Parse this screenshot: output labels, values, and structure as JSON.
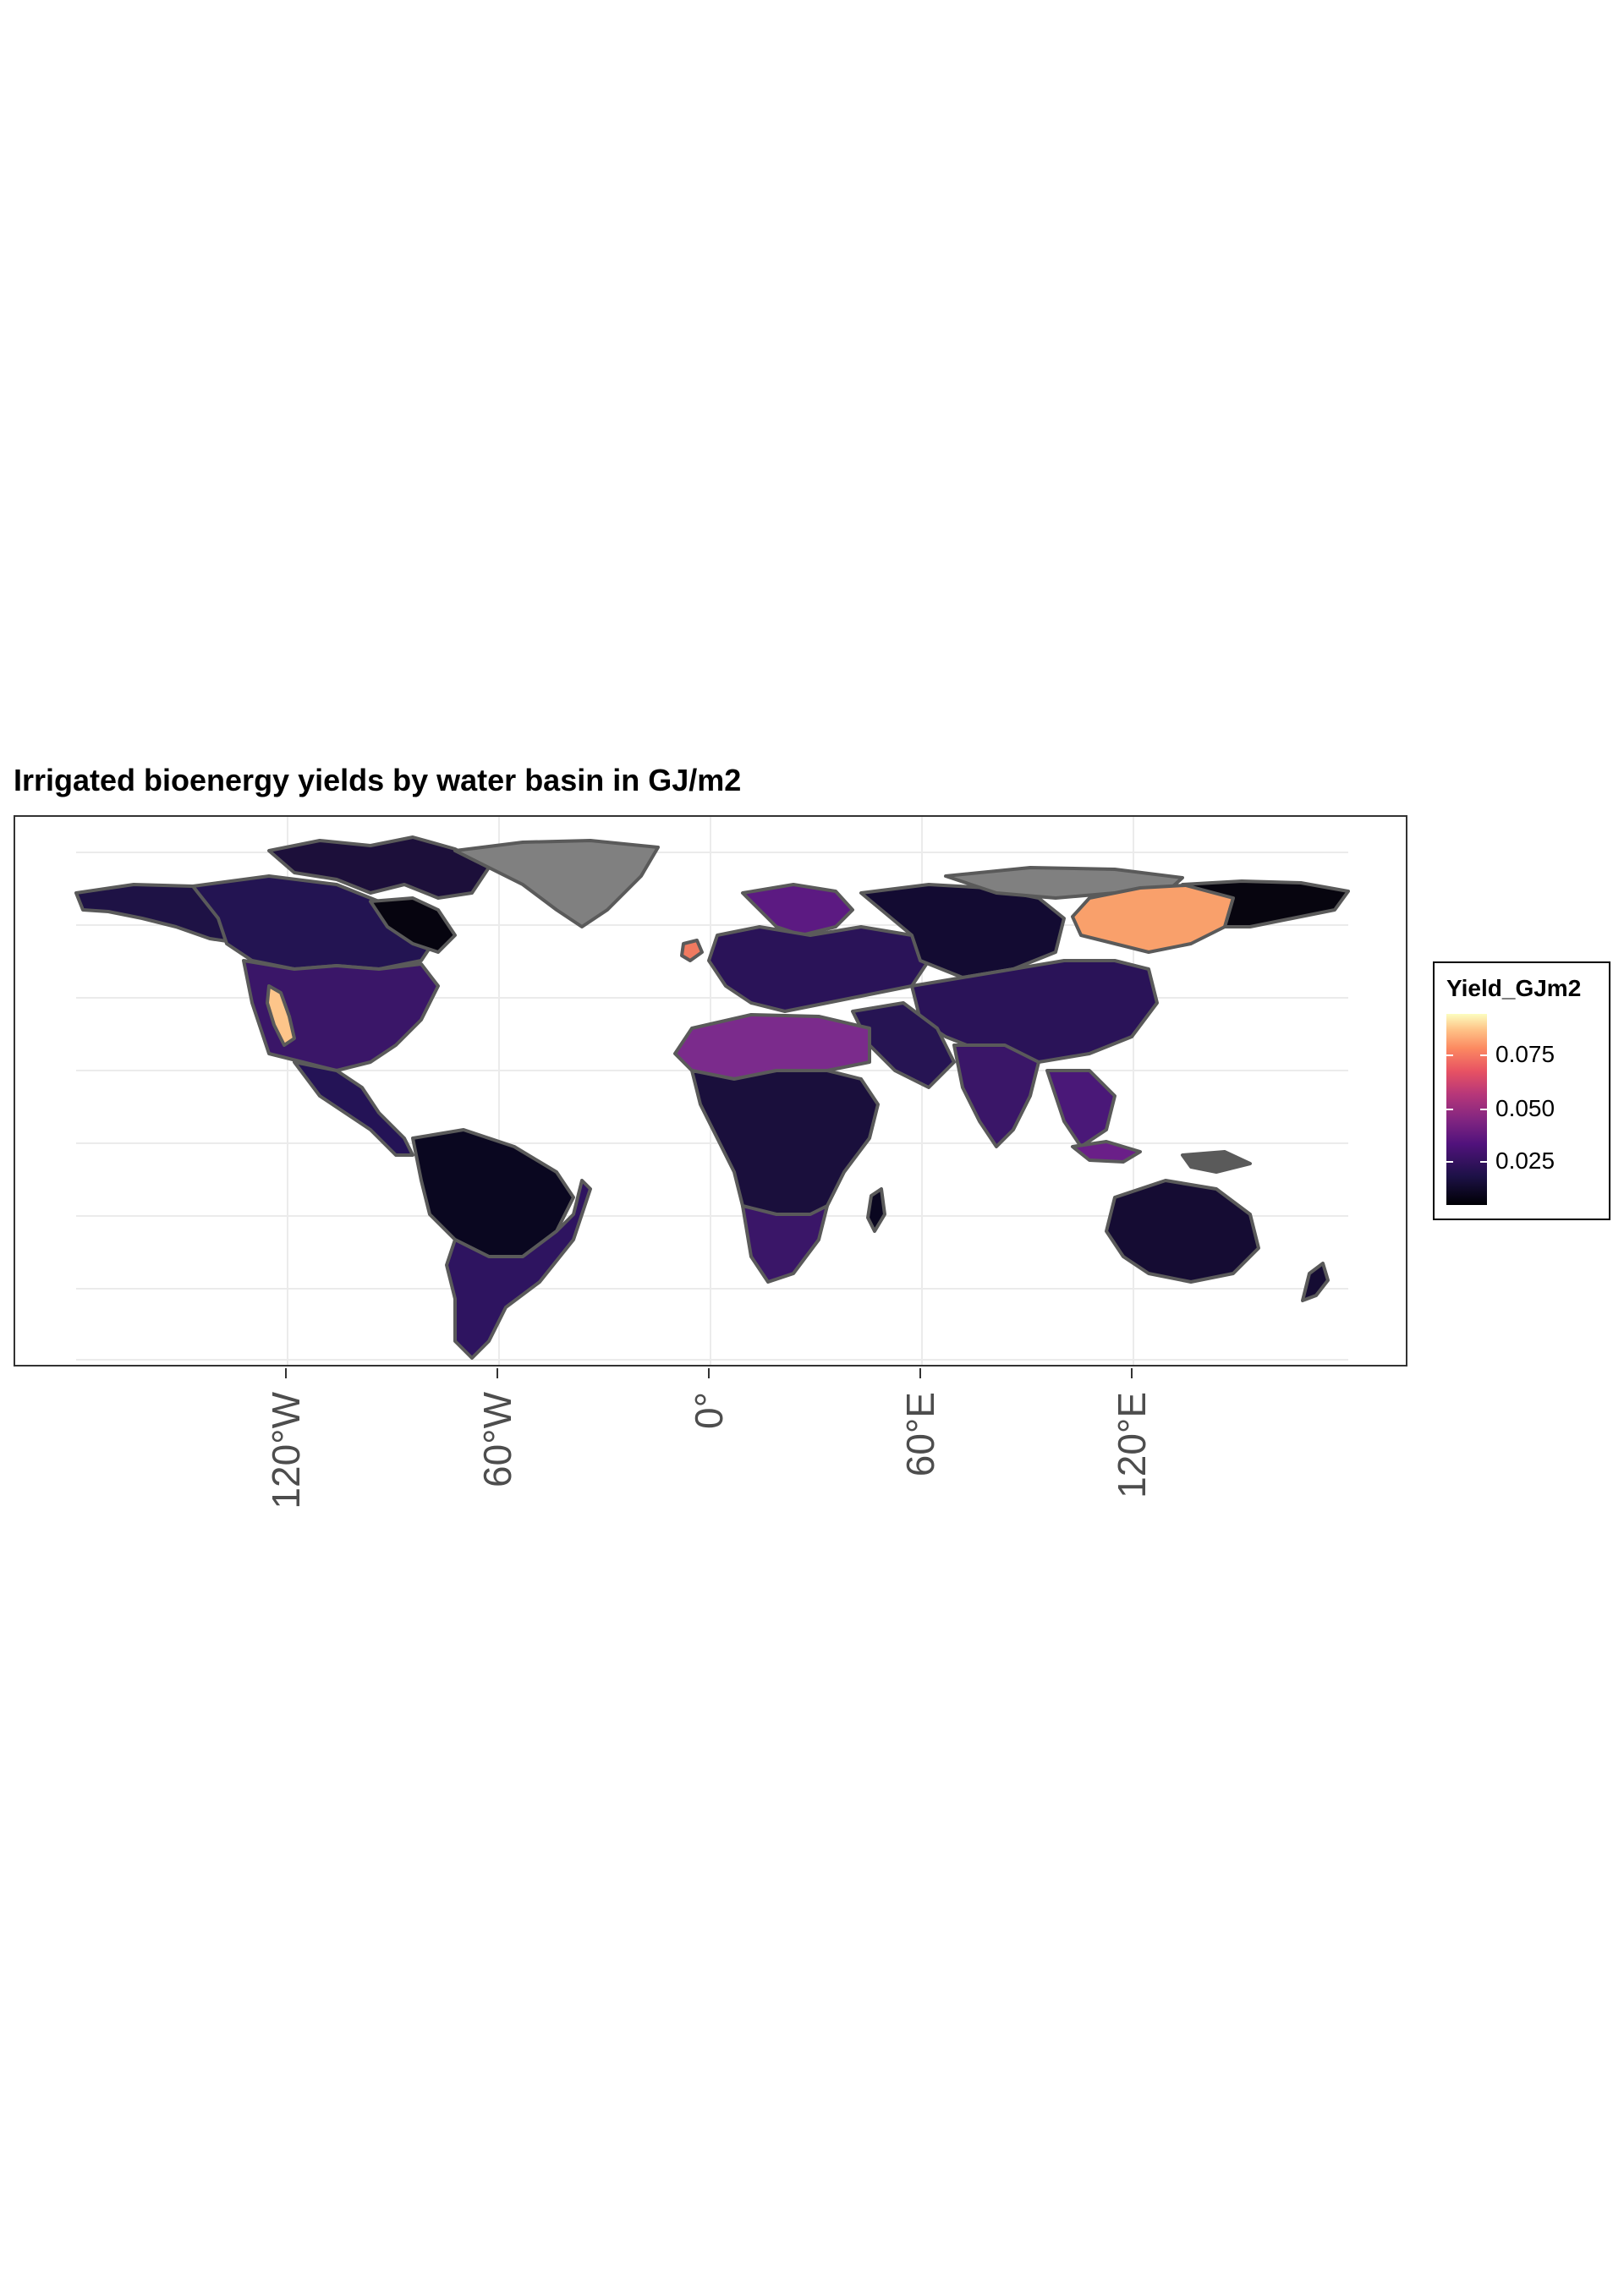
{
  "title": "Irrigated bioenergy yields by water basin in GJ/m2",
  "x_axis": {
    "ticks": [
      {
        "label": "120°W",
        "lon": -120
      },
      {
        "label": "60°W",
        "lon": -60
      },
      {
        "label": "0°",
        "lon": 0
      },
      {
        "label": "60°E",
        "lon": 60
      },
      {
        "label": "120°E",
        "lon": 120
      }
    ]
  },
  "legend": {
    "title": "Yield_GJm2",
    "ticks": [
      {
        "label": "0.075",
        "value": 0.075
      },
      {
        "label": "0.050",
        "value": 0.05
      },
      {
        "label": "0.025",
        "value": 0.025
      }
    ],
    "range": [
      0.0,
      0.087
    ],
    "palette": "magma",
    "no_data_color": "#808080",
    "border_color": "#5a5a5a"
  },
  "map": {
    "lon_range": [
      -180,
      180
    ],
    "lat_range": [
      -58,
      84
    ],
    "graticule": true,
    "highlights": [
      {
        "region": "Eastern Siberia (Lena basin)",
        "level": "high",
        "color": "#f9a06b"
      },
      {
        "region": "California",
        "level": "high",
        "color": "#fdc58a"
      },
      {
        "region": "Ireland",
        "level": "high",
        "color": "#f07a60"
      },
      {
        "region": "Sahara",
        "level": "medium",
        "color": "#7b2b8c"
      },
      {
        "region": "Greenland",
        "level": "no data",
        "color": "#808080"
      },
      {
        "region": "Arctic Siberia",
        "level": "no data",
        "color": "#808080"
      }
    ]
  }
}
